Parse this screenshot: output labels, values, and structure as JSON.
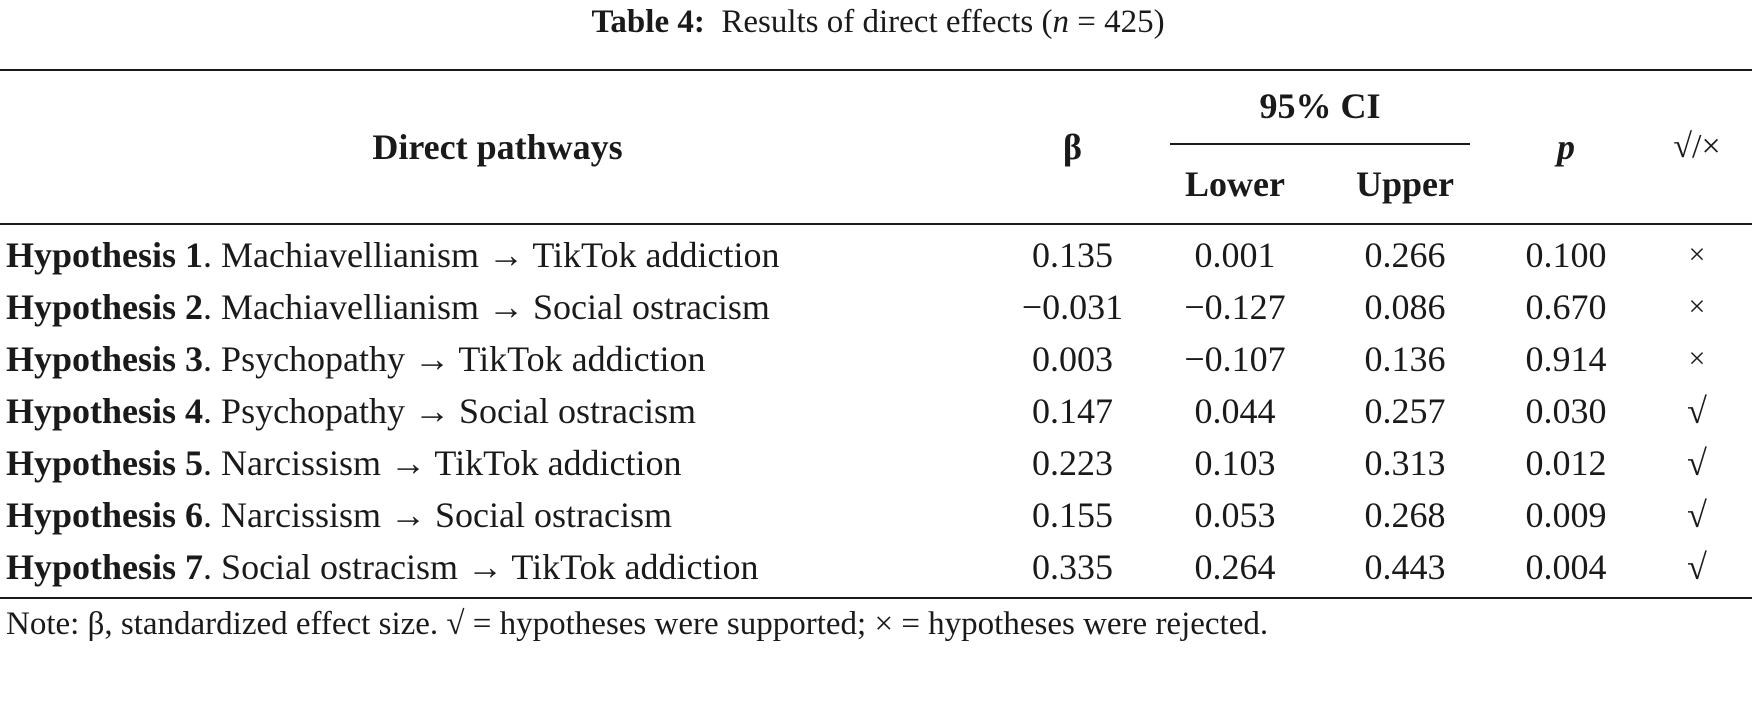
{
  "caption": {
    "label": "Table 4:",
    "text_before_n": "Results of direct effects (",
    "n_symbol": "n",
    "text_after_n": " = 425)"
  },
  "headers": {
    "pathways": "Direct pathways",
    "beta": "β",
    "ci": "95% CI",
    "lower": "Lower",
    "upper": "Upper",
    "p": "p",
    "supported": "√/×"
  },
  "rows": [
    {
      "hypothesis": "Hypothesis 1",
      "path": ". Machiavellianism → TikTok addiction",
      "beta": "0.135",
      "lower": "0.001",
      "upper": "0.266",
      "p": "0.100",
      "result": "×"
    },
    {
      "hypothesis": "Hypothesis 2",
      "path": ". Machiavellianism → Social ostracism",
      "beta": "−0.031",
      "lower": "−0.127",
      "upper": "0.086",
      "p": "0.670",
      "result": "×"
    },
    {
      "hypothesis": "Hypothesis 3",
      "path": ". Psychopathy → TikTok addiction",
      "beta": "0.003",
      "lower": "−0.107",
      "upper": "0.136",
      "p": "0.914",
      "result": "×"
    },
    {
      "hypothesis": "Hypothesis 4",
      "path": ". Psychopathy → Social ostracism",
      "beta": "0.147",
      "lower": "0.044",
      "upper": "0.257",
      "p": "0.030",
      "result": "√"
    },
    {
      "hypothesis": "Hypothesis 5",
      "path": ". Narcissism → TikTok addiction",
      "beta": "0.223",
      "lower": "0.103",
      "upper": "0.313",
      "p": "0.012",
      "result": "√"
    },
    {
      "hypothesis": "Hypothesis 6",
      "path": ". Narcissism → Social ostracism",
      "beta": "0.155",
      "lower": "0.053",
      "upper": "0.268",
      "p": "0.009",
      "result": "√"
    },
    {
      "hypothesis": "Hypothesis 7",
      "path": ". Social ostracism → TikTok addiction",
      "beta": "0.335",
      "lower": "0.264",
      "upper": "0.443",
      "p": "0.004",
      "result": "√"
    }
  ],
  "note": "Note: β, standardized effect size. √ = hypotheses were supported; × = hypotheses were rejected."
}
